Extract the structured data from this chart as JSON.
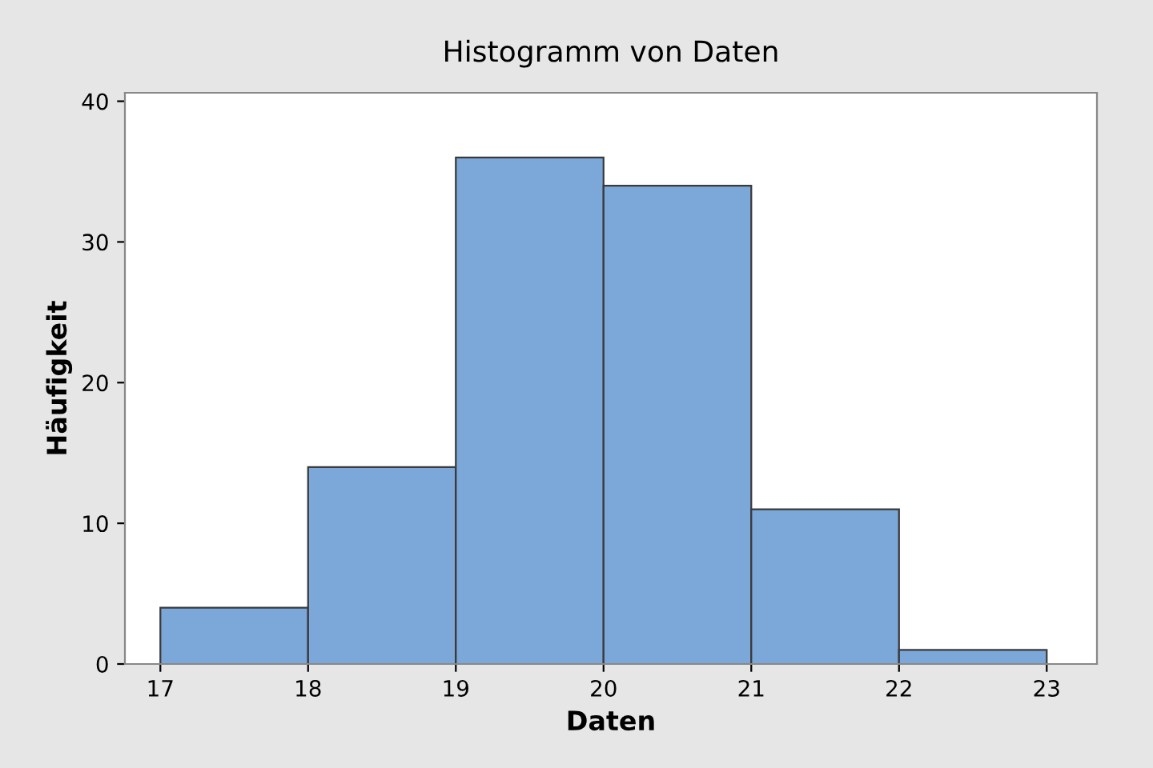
{
  "chart_data": {
    "type": "histogram",
    "title": "Histogramm von Daten",
    "xlabel": "Daten",
    "ylabel": "Häufigkeit",
    "bins": [
      17,
      18,
      19,
      20,
      21,
      22,
      23
    ],
    "values": [
      4,
      14,
      36,
      34,
      11,
      1
    ],
    "color": "#7ba7d9",
    "xlim": [
      16.76,
      23.34
    ],
    "ylim": [
      0,
      40.6
    ],
    "xticks": [
      17,
      18,
      19,
      20,
      21,
      22,
      23
    ],
    "yticks": [
      0,
      10,
      20,
      30,
      40
    ],
    "grid": false
  }
}
